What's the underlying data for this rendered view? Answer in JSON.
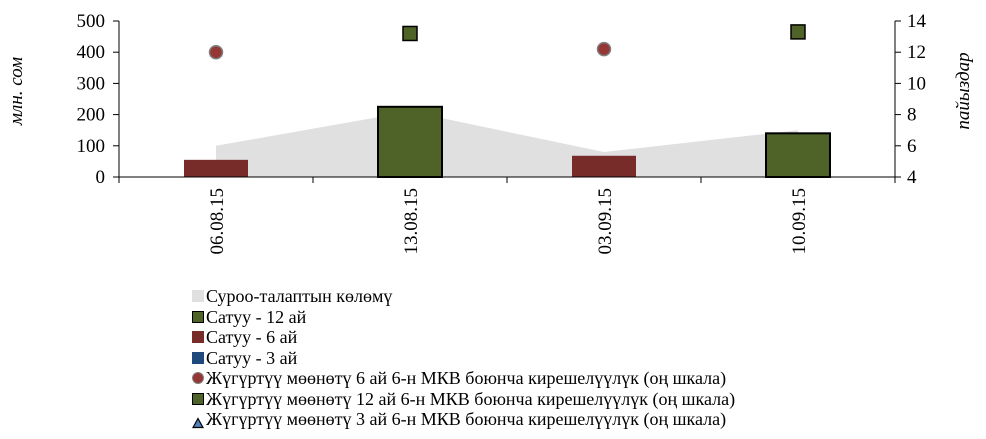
{
  "chart_data": {
    "type": "bar",
    "categories": [
      "06.08.15",
      "13.08.15",
      "03.09.15",
      "10.09.15"
    ],
    "ylabel_left": "млн. сом",
    "ylabel_right": "пайыздар",
    "ylim_left": [
      0,
      500
    ],
    "yticks_left": [
      0,
      100,
      200,
      300,
      400,
      500
    ],
    "ylim_right": [
      4,
      14
    ],
    "yticks_right": [
      4,
      6,
      8,
      10,
      12,
      14
    ],
    "grid": false,
    "legend_position": "bottom",
    "series": [
      {
        "key": "demand",
        "name": "Суроо-талаптын көлөмү",
        "kind": "area",
        "axis": "left",
        "color": "#e0e0e0",
        "values": [
          100,
          210,
          80,
          150
        ]
      },
      {
        "key": "sale12",
        "name": "Сатуу - 12 ай",
        "kind": "bar",
        "axis": "left",
        "color": "#4f6228",
        "values": [
          null,
          225,
          null,
          140
        ]
      },
      {
        "key": "sale6",
        "name": "Сатуу - 6 ай",
        "kind": "bar",
        "axis": "left",
        "color": "#772c2a",
        "values": [
          55,
          null,
          68,
          null
        ]
      },
      {
        "key": "sale3",
        "name": "Сатуу - 3 ай",
        "kind": "bar",
        "axis": "left",
        "color": "#1f497d",
        "values": [
          null,
          null,
          null,
          null
        ]
      },
      {
        "key": "yield6",
        "name": "Жүгүртүү мөөнөтү 6 ай 6-н МКВ боюнча кирешелүүлүк (оң шкала)",
        "kind": "marker-circle",
        "axis": "right",
        "color": "#953735",
        "values": [
          12.0,
          null,
          12.2,
          null
        ]
      },
      {
        "key": "yield12",
        "name": "Жүгүртүү мөөнөтү 12 ай 6-н МКВ боюнча кирешелүүлүк (оң шкала)",
        "kind": "marker-square",
        "axis": "right",
        "color": "#4f6228",
        "values": [
          null,
          13.2,
          null,
          13.3
        ]
      },
      {
        "key": "yield3",
        "name": "Жүгүртүү мөөнөтү 3 ай 6-н МКВ боюнча кирешелүүлүк (оң шкала)",
        "kind": "marker-triangle",
        "axis": "right",
        "color": "#4f81bd",
        "values": [
          null,
          null,
          null,
          null
        ]
      }
    ]
  }
}
